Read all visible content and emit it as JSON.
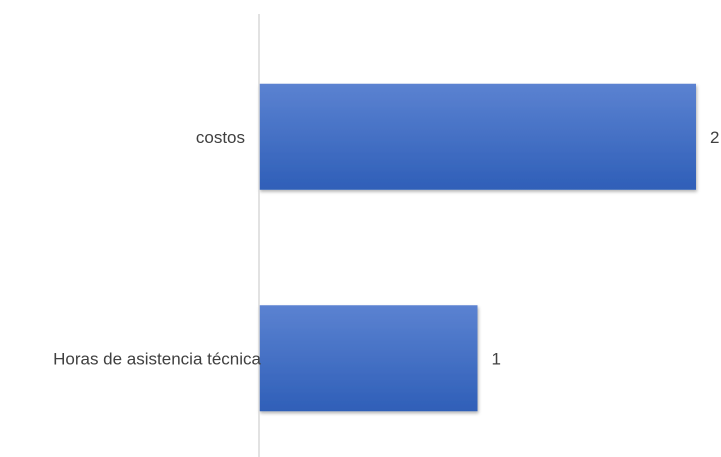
{
  "chart_data": {
    "type": "bar",
    "orientation": "horizontal",
    "categories": [
      "costos",
      "Horas de asistencia técnica"
    ],
    "values": [
      2,
      1
    ],
    "data_labels": [
      "2",
      "1"
    ],
    "title": "",
    "xlabel": "",
    "ylabel": "",
    "xlim": [
      0,
      2
    ],
    "grid": false,
    "legend": "none",
    "colors": {
      "bar_top": "#5b82d1",
      "bar_bottom": "#2f5fb8",
      "axis": "#d9d9d9",
      "text": "#404040"
    }
  }
}
